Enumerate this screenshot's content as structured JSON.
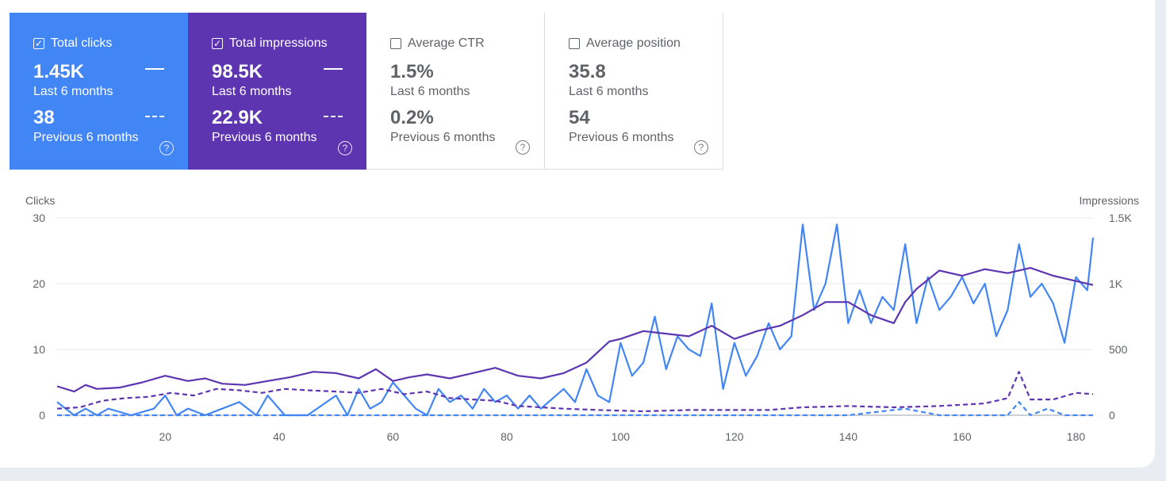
{
  "cards": [
    {
      "title": "Total clicks",
      "checked": true,
      "color": "#4285f4",
      "current_value": "1.45K",
      "current_label": "Last 6 months",
      "previous_value": "38",
      "previous_label": "Previous 6 months",
      "icon": "help-icon"
    },
    {
      "title": "Total impressions",
      "checked": true,
      "color": "#5e35b1",
      "current_value": "98.5K",
      "current_label": "Last 6 months",
      "previous_value": "22.9K",
      "previous_label": "Previous 6 months",
      "icon": "help-icon"
    },
    {
      "title": "Average CTR",
      "checked": false,
      "color": "#ffffff",
      "current_value": "1.5%",
      "current_label": "Last 6 months",
      "previous_value": "0.2%",
      "previous_label": "Previous 6 months",
      "icon": "help-icon"
    },
    {
      "title": "Average position",
      "checked": false,
      "color": "#ffffff",
      "current_value": "35.8",
      "current_label": "Last 6 months",
      "previous_value": "54",
      "previous_label": "Previous 6 months",
      "icon": "help-icon"
    }
  ],
  "chart_data": {
    "type": "line",
    "ylabel_left": "Clicks",
    "ylabel_right": "Impressions",
    "x_ticks": [
      "20",
      "40",
      "60",
      "80",
      "100",
      "120",
      "140",
      "160",
      "180"
    ],
    "x_tick_values": [
      20,
      40,
      60,
      80,
      100,
      120,
      140,
      160,
      180
    ],
    "xlim": [
      1,
      183
    ],
    "yleft_ticks": [
      "0",
      "10",
      "20",
      "30"
    ],
    "yleft_lim": [
      0,
      30
    ],
    "yright_ticks": [
      "0",
      "500",
      "1K",
      "1.5K"
    ],
    "yright_lim": [
      0,
      1500
    ],
    "grid": true,
    "series": [
      {
        "name": "Total clicks",
        "axis": "left",
        "style": "solid",
        "color": "#4285f4",
        "x": [
          1,
          4,
          6,
          8,
          10,
          14,
          18,
          20,
          22,
          24,
          27,
          30,
          33,
          36,
          38,
          41,
          45,
          50,
          52,
          54,
          56,
          58,
          60,
          62,
          64,
          66,
          68,
          70,
          72,
          74,
          76,
          78,
          80,
          82,
          84,
          86,
          90,
          92,
          94,
          96,
          98,
          100,
          102,
          104,
          106,
          108,
          110,
          112,
          114,
          116,
          118,
          120,
          122,
          124,
          126,
          128,
          130,
          132,
          134,
          136,
          138,
          140,
          142,
          144,
          146,
          148,
          150,
          152,
          154,
          156,
          158,
          160,
          162,
          164,
          166,
          168,
          170,
          172,
          174,
          176,
          178,
          180,
          182,
          183
        ],
        "y": [
          2,
          0,
          1,
          0,
          1,
          0,
          1,
          3,
          0,
          1,
          0,
          1,
          2,
          0,
          3,
          0,
          0,
          3,
          0,
          4,
          1,
          2,
          5,
          3,
          1,
          0,
          4,
          2,
          3,
          1,
          4,
          2,
          3,
          1,
          3,
          1,
          4,
          2,
          7,
          3,
          2,
          11,
          6,
          8,
          15,
          7,
          12,
          10,
          9,
          17,
          4,
          11,
          6,
          9,
          14,
          10,
          12,
          29,
          16,
          20,
          29,
          14,
          19,
          14,
          18,
          16,
          26,
          14,
          21,
          16,
          18,
          21,
          17,
          20,
          12,
          16,
          26,
          18,
          20,
          17,
          11,
          21,
          19,
          27
        ]
      },
      {
        "name": "Total impressions",
        "axis": "right",
        "style": "solid",
        "color": "#5e35b1",
        "x": [
          1,
          4,
          6,
          8,
          12,
          16,
          20,
          24,
          27,
          30,
          34,
          38,
          42,
          46,
          50,
          54,
          57,
          60,
          63,
          66,
          70,
          74,
          78,
          82,
          86,
          90,
          94,
          98,
          100,
          104,
          108,
          112,
          116,
          120,
          124,
          128,
          132,
          136,
          140,
          144,
          148,
          150,
          152,
          156,
          160,
          164,
          168,
          172,
          176,
          180,
          183
        ],
        "y": [
          220,
          180,
          230,
          200,
          210,
          250,
          300,
          260,
          280,
          240,
          230,
          260,
          290,
          330,
          320,
          280,
          350,
          260,
          290,
          310,
          280,
          320,
          360,
          300,
          280,
          320,
          400,
          560,
          580,
          640,
          620,
          600,
          680,
          580,
          640,
          680,
          760,
          860,
          860,
          760,
          700,
          860,
          960,
          1100,
          1060,
          1110,
          1080,
          1120,
          1060,
          1020,
          990
        ]
      },
      {
        "name": "Clicks, previous 6 months",
        "axis": "left",
        "style": "dashed",
        "color": "#4285f4",
        "x": [
          1,
          20,
          40,
          60,
          80,
          100,
          120,
          140,
          150,
          156,
          160,
          164,
          168,
          170,
          172,
          175,
          178,
          183
        ],
        "y": [
          0,
          0,
          0,
          0,
          0,
          0,
          0,
          0,
          1,
          0,
          0,
          0,
          0,
          2,
          0,
          1,
          0,
          0
        ]
      },
      {
        "name": "Impressions, previous 6 months",
        "axis": "right",
        "style": "dashed",
        "color": "#5e35b1",
        "x": [
          1,
          5,
          9,
          13,
          17,
          21,
          25,
          29,
          33,
          37,
          41,
          45,
          50,
          54,
          58,
          62,
          66,
          70,
          74,
          78,
          82,
          86,
          90,
          96,
          104,
          112,
          120,
          126,
          132,
          140,
          148,
          156,
          164,
          168,
          170,
          172,
          176,
          180,
          183
        ],
        "y": [
          50,
          60,
          110,
          130,
          140,
          170,
          150,
          200,
          190,
          170,
          200,
          190,
          180,
          170,
          200,
          160,
          180,
          130,
          120,
          110,
          70,
          60,
          50,
          40,
          30,
          40,
          40,
          40,
          60,
          70,
          60,
          70,
          90,
          130,
          330,
          120,
          120,
          170,
          160
        ]
      }
    ]
  }
}
